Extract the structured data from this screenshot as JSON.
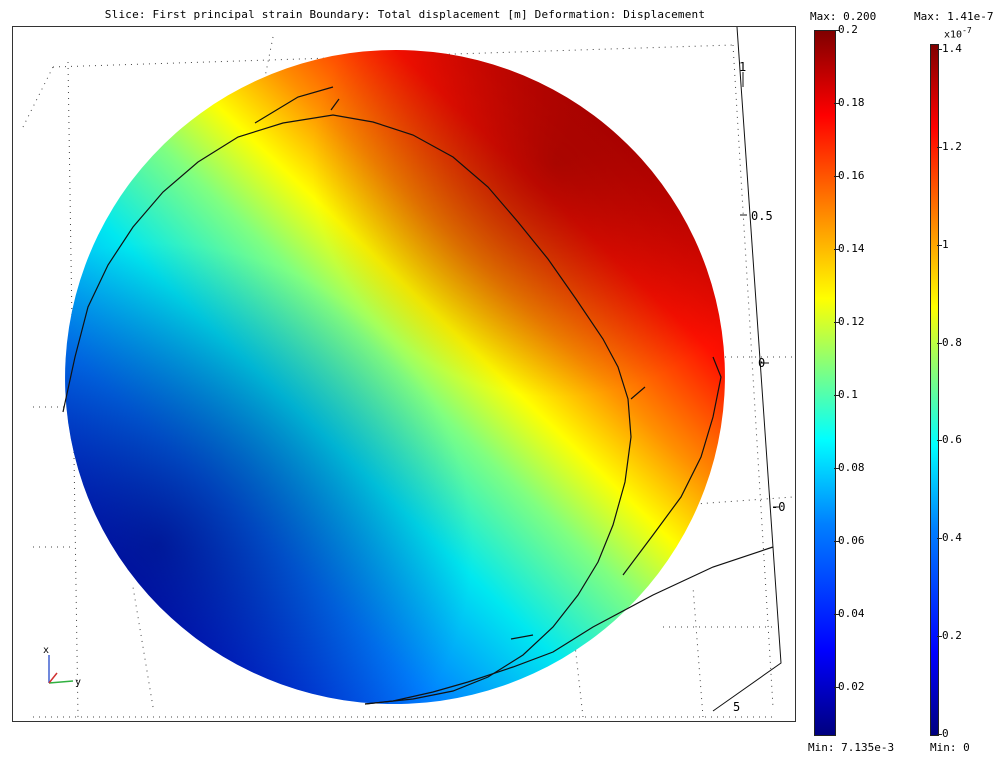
{
  "title": "Slice: First principal strain   Boundary: Total displacement [m]   Deformation: Displacement",
  "axis_labels": {
    "x": "x",
    "y": "y",
    "ticks": [
      "1",
      "0.5",
      "0",
      "-0",
      "5"
    ]
  },
  "colormap": "jet",
  "colorbars": [
    {
      "name": "slice",
      "max_label": "Max: 0.200",
      "min_label": "Min: 7.135e-3",
      "exponent": "",
      "min": 0.007135,
      "max": 0.2,
      "ticks": [
        "0.2",
        "0.18",
        "0.16",
        "0.14",
        "0.12",
        "0.1",
        "0.08",
        "0.06",
        "0.04",
        "0.02"
      ]
    },
    {
      "name": "boundary",
      "max_label": "Max: 1.41e-7",
      "min_label": "Min: 0",
      "exponent": "x10",
      "exponent_power": "-7",
      "min": 0,
      "max": 1.41,
      "ticks": [
        "1.4",
        "1.2",
        "1",
        "0.8",
        "0.6",
        "0.4",
        "0.2",
        "0"
      ]
    }
  ],
  "chart_data": {
    "type": "heatmap",
    "title": "Slice: First principal strain   Boundary: Total displacement [m]   Deformation: Displacement",
    "colorscales": [
      {
        "label": "Slice",
        "min": 0.007135,
        "max": 0.2,
        "ticks": [
          0.2,
          0.18,
          0.16,
          0.14,
          0.12,
          0.1,
          0.08,
          0.06,
          0.04,
          0.02
        ]
      },
      {
        "label": "Boundary",
        "min": 0,
        "max": 1.41e-07,
        "exponent": -7,
        "ticks": [
          1.4,
          1.2,
          1,
          0.8,
          0.6,
          0.4,
          0.2,
          0
        ]
      }
    ],
    "axis_ticks": [
      "1",
      "0.5",
      "0",
      "-0",
      "5"
    ],
    "grid": true
  }
}
